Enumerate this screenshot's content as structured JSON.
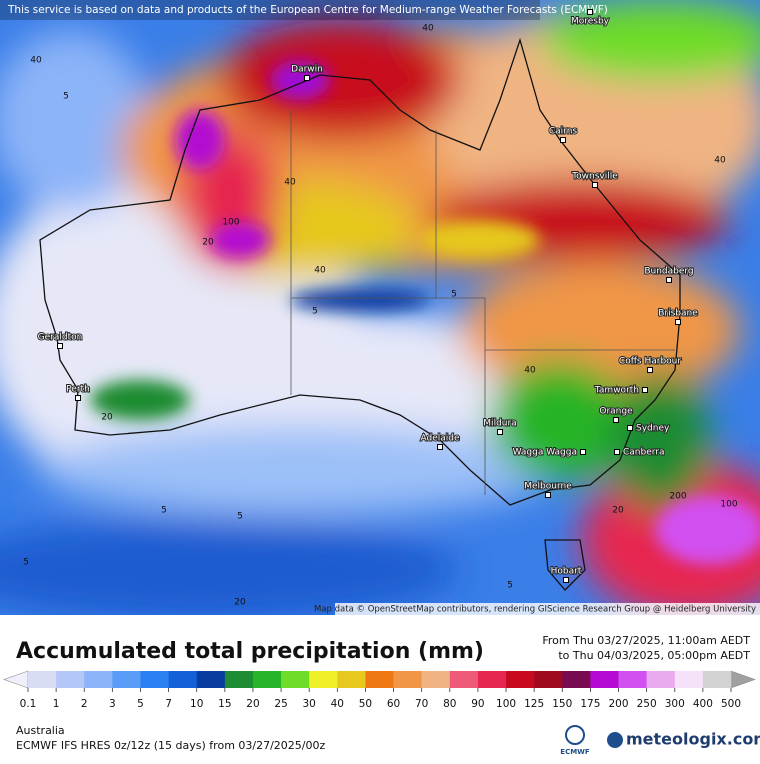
{
  "notice": "This service is based on data and products of the European Centre for Medium-range Weather Forecasts (ECMWF)",
  "map": {
    "cities": [
      "Moresby",
      "Darwin",
      "Cairns",
      "Townsville",
      "Bundaberg",
      "Brisbane",
      "Coffs Harbour",
      "Tamworth",
      "Orange",
      "Sydney",
      "Canberra",
      "Wagga Wagga",
      "Mildura",
      "Adelaide",
      "Melbourne",
      "Hobart",
      "Geraldton",
      "Perth"
    ],
    "contour_labels": [
      40,
      40,
      40,
      5,
      100,
      20,
      40,
      5,
      40,
      5,
      20,
      5,
      5,
      5,
      20,
      200,
      100,
      20,
      40,
      5
    ],
    "attribution": "Map data © OpenStreetMap contributors, rendering GIScience Research Group @ Heidelberg University"
  },
  "title": "Accumulated total precipitation (mm)",
  "period": {
    "from": "From Thu 03/27/2025, 11:00am AEDT",
    "to": "to Thu 04/03/2025, 05:00pm AEDT"
  },
  "legend": {
    "ticks": [
      0.1,
      1,
      2,
      3,
      5,
      7,
      10,
      15,
      20,
      25,
      30,
      40,
      50,
      60,
      70,
      80,
      90,
      100,
      125,
      150,
      175,
      200,
      250,
      300,
      400,
      500
    ],
    "colors": [
      "#d8dcf4",
      "#b4c8f8",
      "#8cb4f8",
      "#5a9cf8",
      "#2a80f0",
      "#1460d8",
      "#0a3ca0",
      "#1e8c32",
      "#28b428",
      "#6edc28",
      "#f0f028",
      "#e6c81e",
      "#f07814",
      "#f09646",
      "#f0b482",
      "#f05a7a",
      "#e62850",
      "#c80a1e",
      "#a00a1e",
      "#780a50",
      "#b40ad2",
      "#d250f0",
      "#eaaaf0",
      "#f5e1fa",
      "#d2d2d2"
    ],
    "below_color": "#f0f0fa",
    "above_color": "#a0a0a0"
  },
  "footer": {
    "region": "Australia",
    "model": "ECMWF IFS HRES 0z/12z (15 days) from 03/27/2025/00z",
    "ecmwf_logo": "ECMWF",
    "brand": "meteologix.com"
  }
}
